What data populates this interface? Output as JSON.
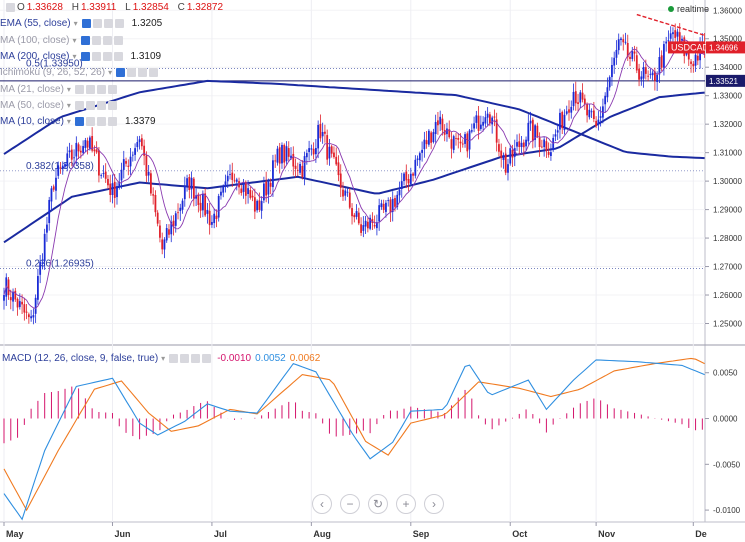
{
  "symbol": "USDCAD",
  "realtime_label": "realtime",
  "ohlc": {
    "o_label": "O",
    "o": "1.33628",
    "h_label": "H",
    "h": "1.33911",
    "l_label": "L",
    "l": "1.32854",
    "c_label": "C",
    "c": "1.32872"
  },
  "indicators": [
    {
      "name": "EMA (55, close)",
      "value": "1.3205",
      "active": true
    },
    {
      "name": "MA (100, close)",
      "value": "",
      "active": false
    },
    {
      "name": "MA (200, close)",
      "value": "1.3109",
      "active": true
    },
    {
      "name": "Ichimoku (9, 26, 52, 26)",
      "value": "",
      "active": true
    },
    {
      "name": "MA (21, close)",
      "value": "",
      "active": false
    },
    {
      "name": "MA (50, close)",
      "value": "",
      "active": false
    },
    {
      "name": "MA (10, close)",
      "value": "1.3379",
      "active": true
    }
  ],
  "macd_legend": {
    "name": "MACD (12, 26, close, 9, false, true)",
    "hist": "-0.0010",
    "macd": "0.0052",
    "signal": "0.0062"
  },
  "colors": {
    "up": "#1a2bd6",
    "down": "#e0202a",
    "ma": "#1a2aa0",
    "ma10": "#8a3ab0",
    "macd": "#2f8fe0",
    "signal": "#f07a20",
    "hist": "#d4146c",
    "fib": "#2c3e9a"
  },
  "chart_data": {
    "type": "candlestick",
    "months": [
      "May",
      "Jun",
      "Jul",
      "Aug",
      "Sep",
      "Oct",
      "Nov",
      "De"
    ],
    "price_axis": {
      "ylim": [
        1.2435,
        1.3615
      ],
      "ticks": [
        1.25,
        1.26,
        1.27,
        1.28,
        1.29,
        1.3,
        1.31,
        1.32,
        1.33,
        1.34,
        1.35,
        1.36
      ],
      "labels": [
        "1.25000",
        "1.26000",
        "1.27000",
        "1.28000",
        "1.29000",
        "1.30000",
        "1.31000",
        "1.32000",
        "1.33000",
        "1.34000",
        "1.35000",
        "1.36000"
      ]
    },
    "current_price": {
      "label": "USDCAD",
      "value": 1.34696,
      "text": "1.34696"
    },
    "horizontal_line": {
      "value": 1.33521,
      "text": "1.33521"
    },
    "fib_levels": [
      {
        "label": "0.5(1.33950)",
        "value": 1.3395
      },
      {
        "label": "0.382(1.30358)",
        "value": 1.3036
      },
      {
        "label": "0.236(1.26935)",
        "value": 1.26935
      }
    ],
    "control_points": [
      0,
      12,
      22,
      36,
      48,
      60,
      70,
      82,
      92,
      102,
      112,
      122,
      132,
      140,
      148,
      158,
      170,
      180,
      192,
      202,
      214,
      222,
      232,
      242,
      252,
      262,
      272,
      286,
      296,
      304,
      310
    ],
    "close_path": [
      1.264,
      1.25,
      1.3,
      1.315,
      1.296,
      1.316,
      1.276,
      1.3,
      1.286,
      1.304,
      1.29,
      1.31,
      1.305,
      1.318,
      1.3,
      1.283,
      1.29,
      1.303,
      1.322,
      1.31,
      1.327,
      1.305,
      1.318,
      1.312,
      1.332,
      1.318,
      1.348,
      1.334,
      1.352,
      1.342,
      1.347
    ],
    "ema55": [
      [
        0,
        1.2785
      ],
      [
        30,
        1.2945
      ],
      [
        60,
        1.2995
      ],
      [
        90,
        1.2975
      ],
      [
        130,
        1.3015
      ],
      [
        165,
        1.2955
      ],
      [
        190,
        1.3005
      ],
      [
        220,
        1.3085
      ],
      [
        245,
        1.3115
      ],
      [
        268,
        1.3225
      ],
      [
        290,
        1.3295
      ],
      [
        310,
        1.3311
      ]
    ],
    "ma200": [
      [
        0,
        1.3095
      ],
      [
        25,
        1.3225
      ],
      [
        60,
        1.3312
      ],
      [
        90,
        1.3352
      ],
      [
        120,
        1.3342
      ],
      [
        160,
        1.3322
      ],
      [
        200,
        1.3302
      ],
      [
        228,
        1.3252
      ],
      [
        250,
        1.3182
      ],
      [
        275,
        1.3102
      ],
      [
        295,
        1.3086
      ],
      [
        310,
        1.3081
      ]
    ],
    "resistance_line": {
      "from": [
        280,
        1.3585
      ],
      "to": [
        310,
        1.3512
      ]
    },
    "macd_axis": {
      "ylim": [
        -0.0113,
        0.0077
      ],
      "ticks": [
        0.005,
        0.0,
        -0.005,
        -0.01
      ],
      "labels": [
        "0.0050",
        "0.0000",
        "-0.0050",
        "-0.0100"
      ]
    },
    "macd_points": [
      [
        0,
        -0.0082
      ],
      [
        8,
        -0.011
      ],
      [
        18,
        -0.0035
      ],
      [
        32,
        0.0035
      ],
      [
        48,
        0.0044
      ],
      [
        60,
        -0.0005
      ],
      [
        68,
        -0.0018
      ],
      [
        80,
        -0.0003
      ],
      [
        90,
        0.0016
      ],
      [
        100,
        0.0008
      ],
      [
        112,
        0.0006
      ],
      [
        128,
        0.006
      ],
      [
        138,
        0.0051
      ],
      [
        155,
        -0.002
      ],
      [
        162,
        -0.0044
      ],
      [
        172,
        -0.0026
      ],
      [
        180,
        0.0008
      ],
      [
        195,
        0.001
      ],
      [
        205,
        0.0062
      ],
      [
        215,
        0.0025
      ],
      [
        232,
        0.0042
      ],
      [
        240,
        0.001
      ],
      [
        252,
        0.0042
      ],
      [
        262,
        0.0064
      ],
      [
        280,
        0.0062
      ],
      [
        300,
        0.0058
      ],
      [
        310,
        0.0048
      ]
    ],
    "signal_points": [
      [
        0,
        -0.0055
      ],
      [
        10,
        -0.01
      ],
      [
        24,
        -0.0035
      ],
      [
        40,
        0.0032
      ],
      [
        52,
        0.0041
      ],
      [
        64,
        0.0006
      ],
      [
        74,
        -0.0014
      ],
      [
        86,
        -0.0008
      ],
      [
        100,
        0.001
      ],
      [
        112,
        0.0005
      ],
      [
        132,
        0.0048
      ],
      [
        145,
        0.0042
      ],
      [
        160,
        -0.0025
      ],
      [
        170,
        -0.004
      ],
      [
        180,
        -0.0005
      ],
      [
        195,
        0.0004
      ],
      [
        210,
        0.004
      ],
      [
        228,
        0.0033
      ],
      [
        242,
        0.0024
      ],
      [
        255,
        0.0032
      ],
      [
        270,
        0.0052
      ],
      [
        288,
        0.006
      ],
      [
        305,
        0.0066
      ],
      [
        310,
        0.006
      ]
    ]
  }
}
